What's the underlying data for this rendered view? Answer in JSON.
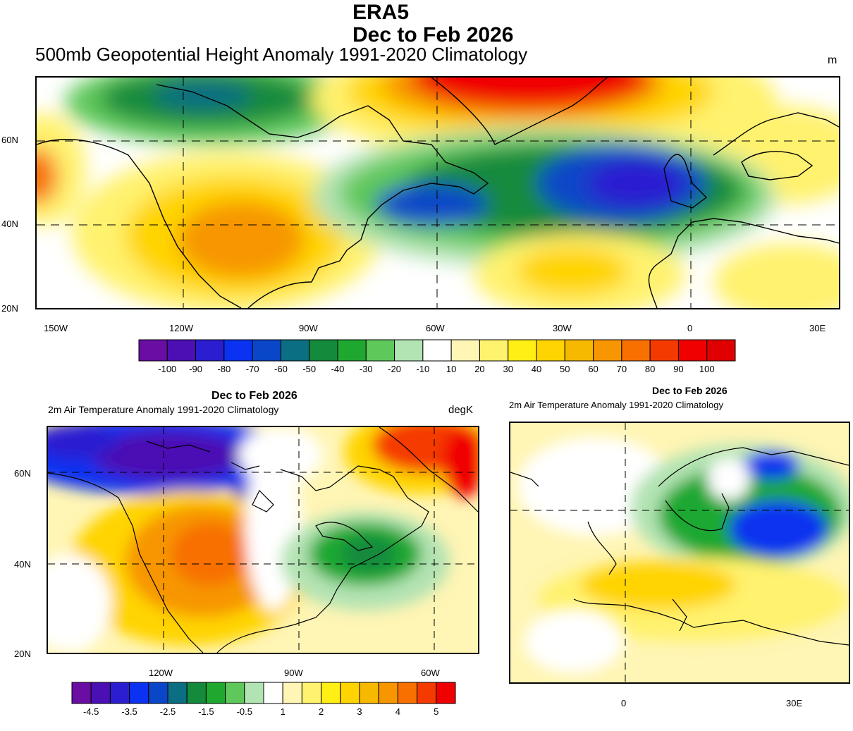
{
  "top": {
    "title_line1": "ERA5",
    "title_line2": "Dec to Feb 2026",
    "subtitle": "500mb Geopotential Height Anomaly  1991-2020 Climatology",
    "units": "m",
    "lat_labels": [
      "60N",
      "40N",
      "20N"
    ],
    "lon_labels": [
      "150W",
      "120W",
      "90W",
      "60W",
      "30W",
      "0",
      "30E"
    ],
    "colorbar": {
      "labels": [
        "-100",
        "-90",
        "-80",
        "-70",
        "-60",
        "-50",
        "-40",
        "-30",
        "-20",
        "-10",
        "10",
        "20",
        "30",
        "40",
        "50",
        "60",
        "70",
        "80",
        "90",
        "100"
      ],
      "colors": [
        "#6a0da3",
        "#4b0fb4",
        "#2a1ed0",
        "#0a32f0",
        "#0a46c8",
        "#0b6e82",
        "#138a3c",
        "#1fa830",
        "#5ec85a",
        "#b2e3b2",
        "#ffffff",
        "#fff5b4",
        "#fff26e",
        "#ffef14",
        "#ffd400",
        "#f7b800",
        "#f79600",
        "#f77000",
        "#f53a00",
        "#f00000",
        "#e00000"
      ]
    }
  },
  "left": {
    "title": "Dec to Feb 2026",
    "subtitle": "2m Air Temperature Anomaly 1991-2020 Climatology",
    "units": "degK",
    "lat_labels": [
      "60N",
      "40N",
      "20N"
    ],
    "lon_labels": [
      "120W",
      "90W",
      "60W"
    ],
    "colorbar": {
      "labels": [
        "-4.5",
        "-3.5",
        "-2.5",
        "-1.5",
        "-0.5",
        "1",
        "2",
        "3",
        "4",
        "5"
      ],
      "colors": [
        "#6a0da3",
        "#4b0fb4",
        "#2a1ed0",
        "#0a32f0",
        "#0a46c8",
        "#0b6e82",
        "#138a3c",
        "#1fa830",
        "#5ec85a",
        "#b2e3b2",
        "#ffffff",
        "#fff5b4",
        "#fff26e",
        "#ffef14",
        "#ffd400",
        "#f7b800",
        "#f79600",
        "#f77000",
        "#f53a00",
        "#f00000"
      ]
    }
  },
  "right": {
    "title": "Dec to Feb 2026",
    "subtitle": "2m Air Temperature Anomaly 1991-2020 Climatology",
    "lon_labels": [
      "0",
      "30E"
    ]
  }
}
